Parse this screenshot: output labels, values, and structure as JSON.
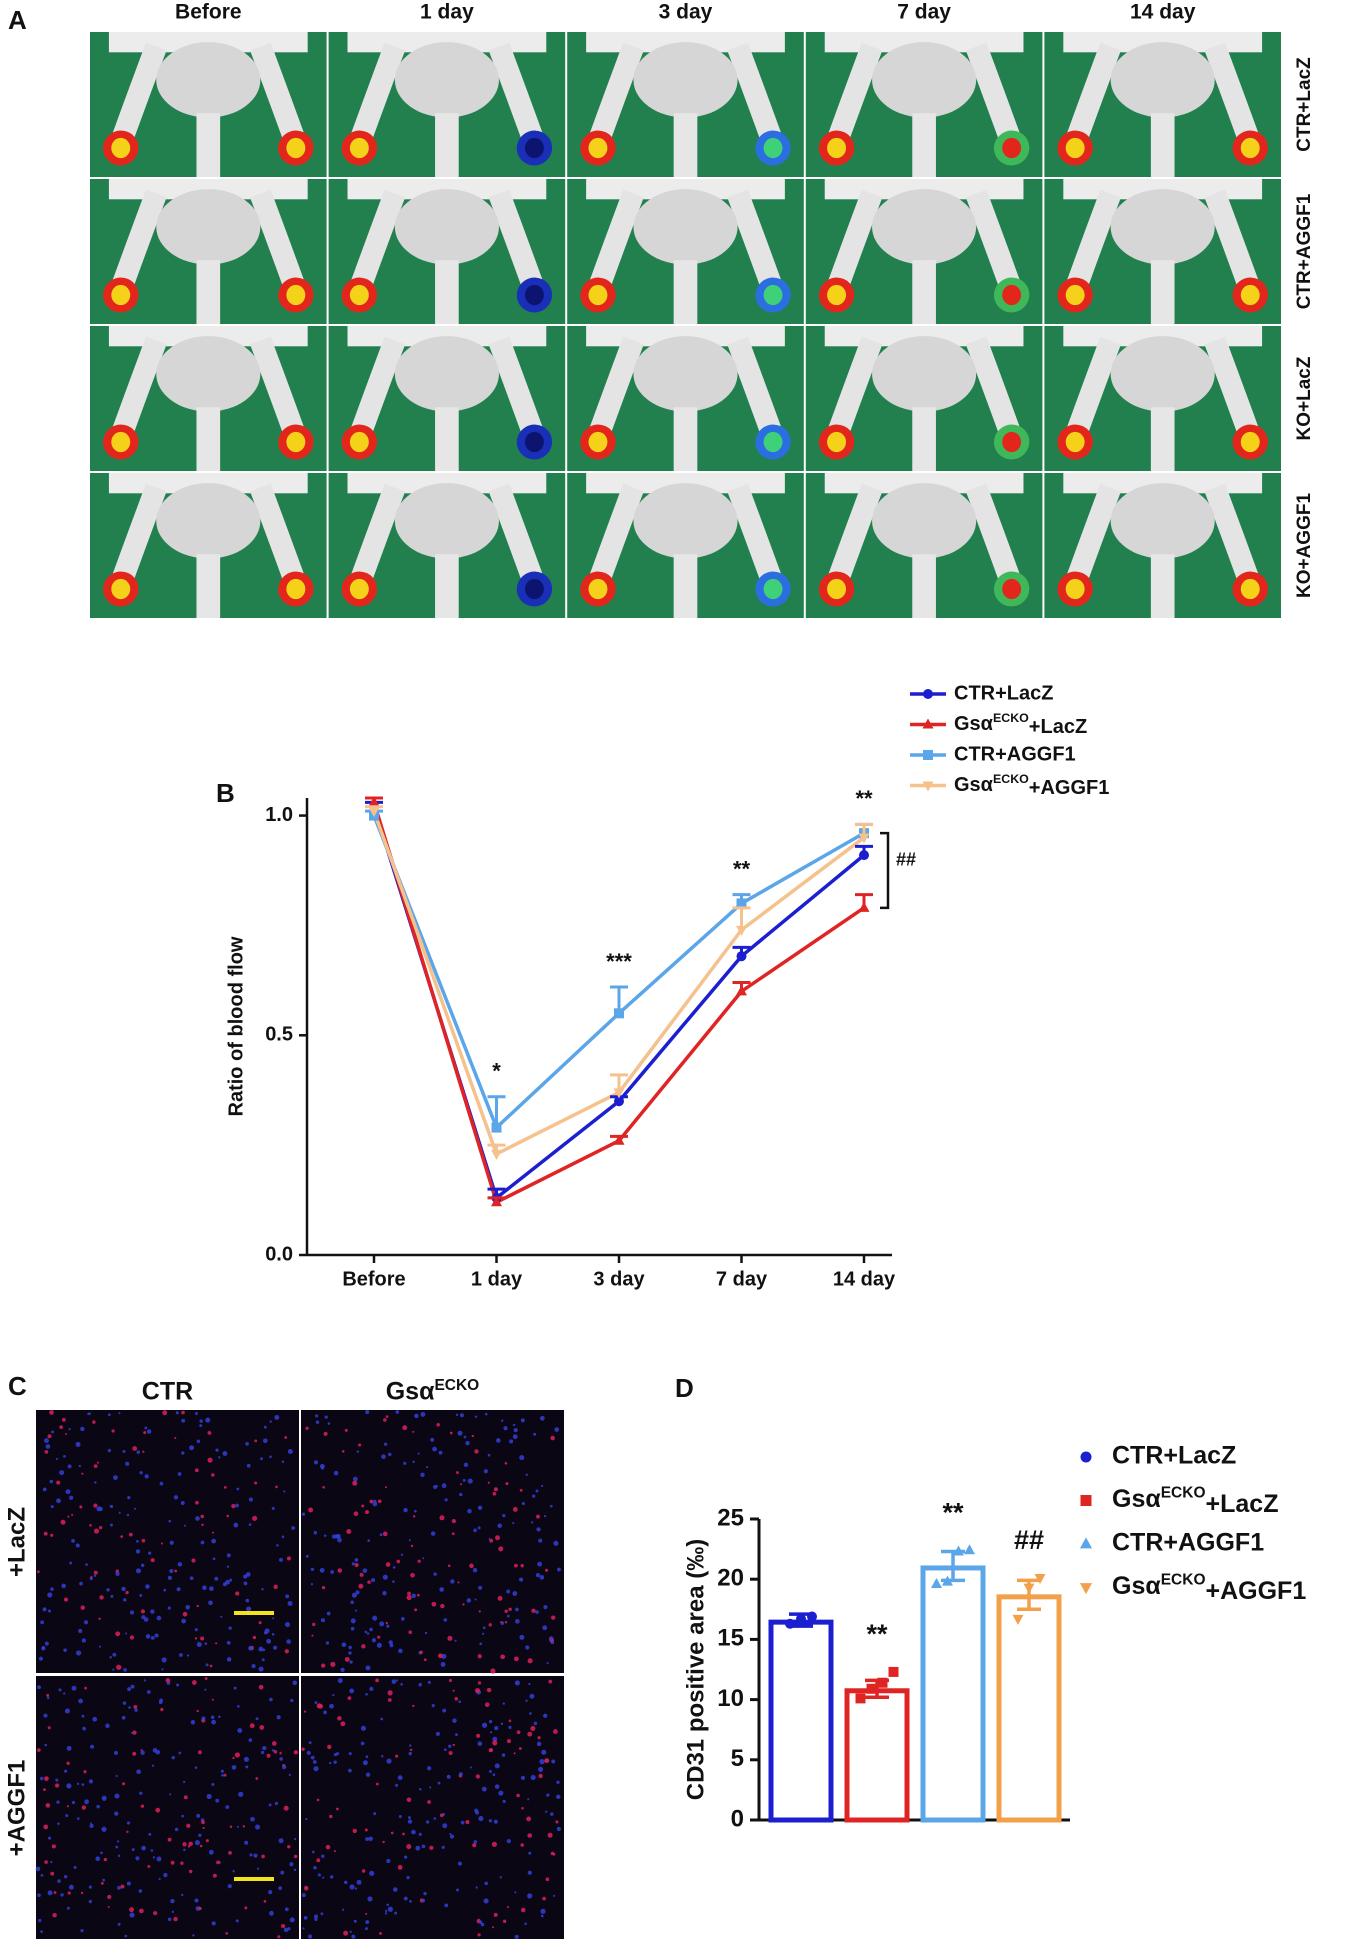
{
  "panel_a": {
    "label": "A",
    "columns": [
      "Before",
      "1 day",
      "3 day",
      "7 day",
      "14 day"
    ],
    "rows": [
      "CTR+LacZ",
      "CTR+AGGF1",
      "KO+LacZ",
      "KO+AGGF1"
    ]
  },
  "panel_c": {
    "label": "C",
    "columns": [
      "CTR",
      "GsαECKO"
    ],
    "rows": [
      "+LacZ",
      "+AGGF1"
    ]
  },
  "chart_data": [
    {
      "type": "line",
      "label": "B",
      "y_label": "Ratio of blood flow",
      "categories": [
        "Before",
        "1 day",
        "3 day",
        "7 day",
        "14 day"
      ],
      "ylim": [
        0,
        1.04
      ],
      "yticks": [
        {
          "value": 0,
          "label": "0.0"
        },
        {
          "value": 0.5,
          "label": "0.5"
        },
        {
          "value": 1,
          "label": "1.0"
        }
      ],
      "series": [
        {
          "name": "CTR+LacZ",
          "color": "#1c1fd0",
          "marker": "circle",
          "values": [
            1.02,
            0.13,
            0.35,
            0.68,
            0.91
          ],
          "errors": [
            0.01,
            0.02,
            0.01,
            0.02,
            0.02
          ]
        },
        {
          "name": "GsαECKO+LacZ",
          "color": "#e02424",
          "marker": "triangle",
          "values": [
            1.03,
            0.12,
            0.26,
            0.6,
            0.79
          ],
          "errors": [
            0.01,
            0.01,
            0.01,
            0.02,
            0.03
          ]
        },
        {
          "name": "CTR+AGGF1",
          "color": "#5aa6e8",
          "marker": "square",
          "values": [
            1.0,
            0.29,
            0.55,
            0.8,
            0.96
          ],
          "errors": [
            0.01,
            0.07,
            0.06,
            0.02,
            0.02
          ]
        },
        {
          "name": "GsαECKO+AGGF1",
          "color": "#f5c18c",
          "marker": "triangle-down",
          "values": [
            1.01,
            0.23,
            0.37,
            0.74,
            0.95
          ],
          "errors": [
            0.01,
            0.02,
            0.04,
            0.05,
            0.03
          ]
        }
      ],
      "annotations": [
        {
          "text": "*",
          "category": "1 day"
        },
        {
          "text": "***",
          "category": "3 day"
        },
        {
          "text": "**",
          "category": "7 day"
        },
        {
          "text": "**",
          "category": "14 day"
        }
      ],
      "bracket_label": "##"
    },
    {
      "type": "bar",
      "label": "D",
      "y_label": "CD31 positive area (‰)",
      "ylim": [
        0,
        25
      ],
      "yticks": [
        0,
        5,
        10,
        15,
        20,
        25
      ],
      "series": [
        {
          "name": "CTR+LacZ",
          "color": "#1c1fd0",
          "marker": "circle",
          "values": [
            16.6
          ],
          "errors": [
            0.5
          ],
          "points": [
            16.3,
            16.7,
            16.9
          ]
        },
        {
          "name": "GsαECKO+LacZ",
          "color": "#e02424",
          "marker": "square",
          "values": [
            10.9
          ],
          "errors": [
            0.7
          ],
          "points": [
            10.1,
            10.9,
            11.4,
            12.3
          ]
        },
        {
          "name": "CTR+AGGF1",
          "color": "#5aa6e8",
          "marker": "triangle",
          "values": [
            21.1
          ],
          "errors": [
            1.2
          ],
          "points": [
            19.6,
            19.8,
            22.3,
            22.4
          ]
        },
        {
          "name": "GsαECKO+AGGF1",
          "color": "#f2a14a",
          "marker": "triangle-down",
          "values": [
            18.7
          ],
          "errors": [
            1.2
          ],
          "points": [
            16.7,
            19.3,
            20.1
          ]
        }
      ],
      "annotations": [
        {
          "text": "**",
          "category": "GsαECKO+LacZ"
        },
        {
          "text": "**",
          "category": "CTR+AGGF1"
        },
        {
          "text": "##",
          "category": "GsαECKO+AGGF1"
        }
      ]
    }
  ]
}
